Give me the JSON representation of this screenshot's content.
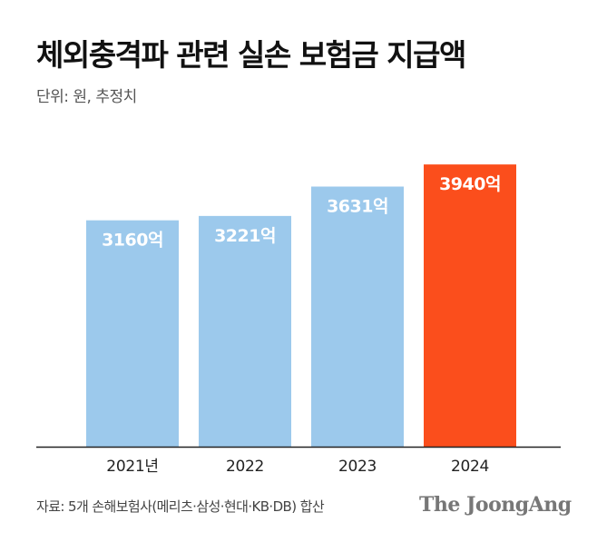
{
  "header": {
    "title": "체외충격파 관련 실손 보험금 지급액",
    "unit": "단위: 원, 추정치"
  },
  "footer": {
    "source": "자료: 5개 손해보험사(메리츠·삼성·현대·KB·DB) 합산",
    "brand": "The JoongAng"
  },
  "colors": {
    "bar_default": "#9cc9ec",
    "bar_highlight": "#fb4e1c",
    "baseline": "#222222"
  },
  "chart_data": {
    "type": "bar",
    "title": "체외충격파 관련 실손 보험금 지급액",
    "xlabel": "",
    "ylabel": "",
    "categories": [
      "2021년",
      "2022",
      "2023",
      "2024"
    ],
    "values": [
      3160,
      3221,
      3631,
      3940
    ],
    "data_labels": [
      "3160억",
      "3221억",
      "3631억",
      "3940억"
    ],
    "highlight_index": 3,
    "grid": false,
    "ylim": [
      0,
      4000
    ]
  }
}
